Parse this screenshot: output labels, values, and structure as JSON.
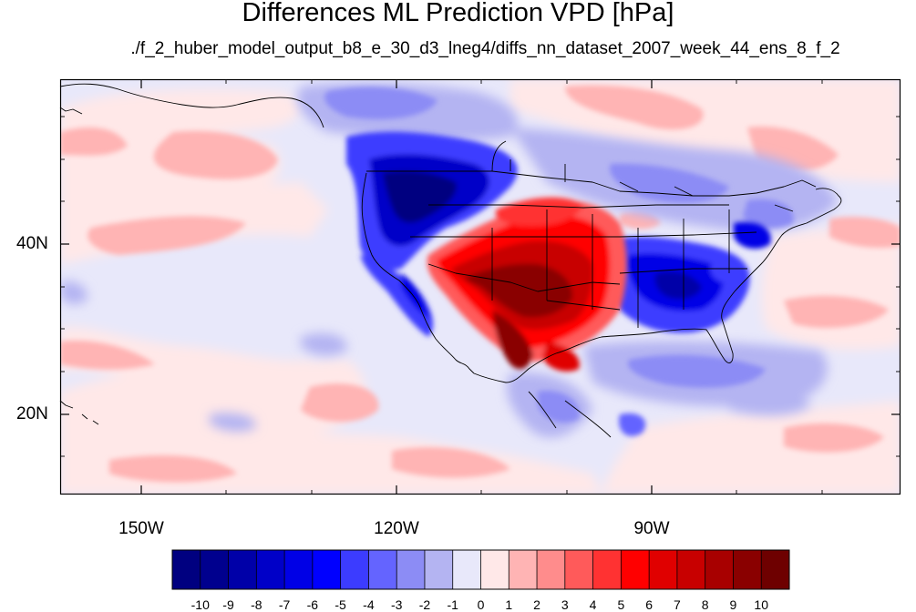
{
  "title": "Differences ML Prediction VPD [hPa]",
  "subtitle": "./f_2_huber_model_output_b8_e_30_d3_lneg4/diffs_nn_dataset_2007_week_44_ens_8_f_2",
  "lat_labels": [
    "40N",
    "20N"
  ],
  "lon_labels": [
    "150W",
    "120W",
    "90W"
  ],
  "colorbar": {
    "labels": [
      "-10",
      "-9",
      "-8",
      "-7",
      "-6",
      "-5",
      "-4",
      "-3",
      "-2",
      "-1",
      "0",
      "1",
      "2",
      "3",
      "4",
      "5",
      "6",
      "7",
      "8",
      "9",
      "10"
    ],
    "colors": [
      "#000080",
      "#00008e",
      "#0000a8",
      "#0000c8",
      "#0000e6",
      "#0000ff",
      "#3c3cff",
      "#6464ff",
      "#8c8cf5",
      "#b4b4f2",
      "#e8e8fa",
      "#ffe8e8",
      "#ffb4b4",
      "#ff8c8c",
      "#ff5a5a",
      "#ff3232",
      "#ff0000",
      "#e00000",
      "#c80000",
      "#a80000",
      "#8a0000",
      "#6e0000"
    ]
  }
}
